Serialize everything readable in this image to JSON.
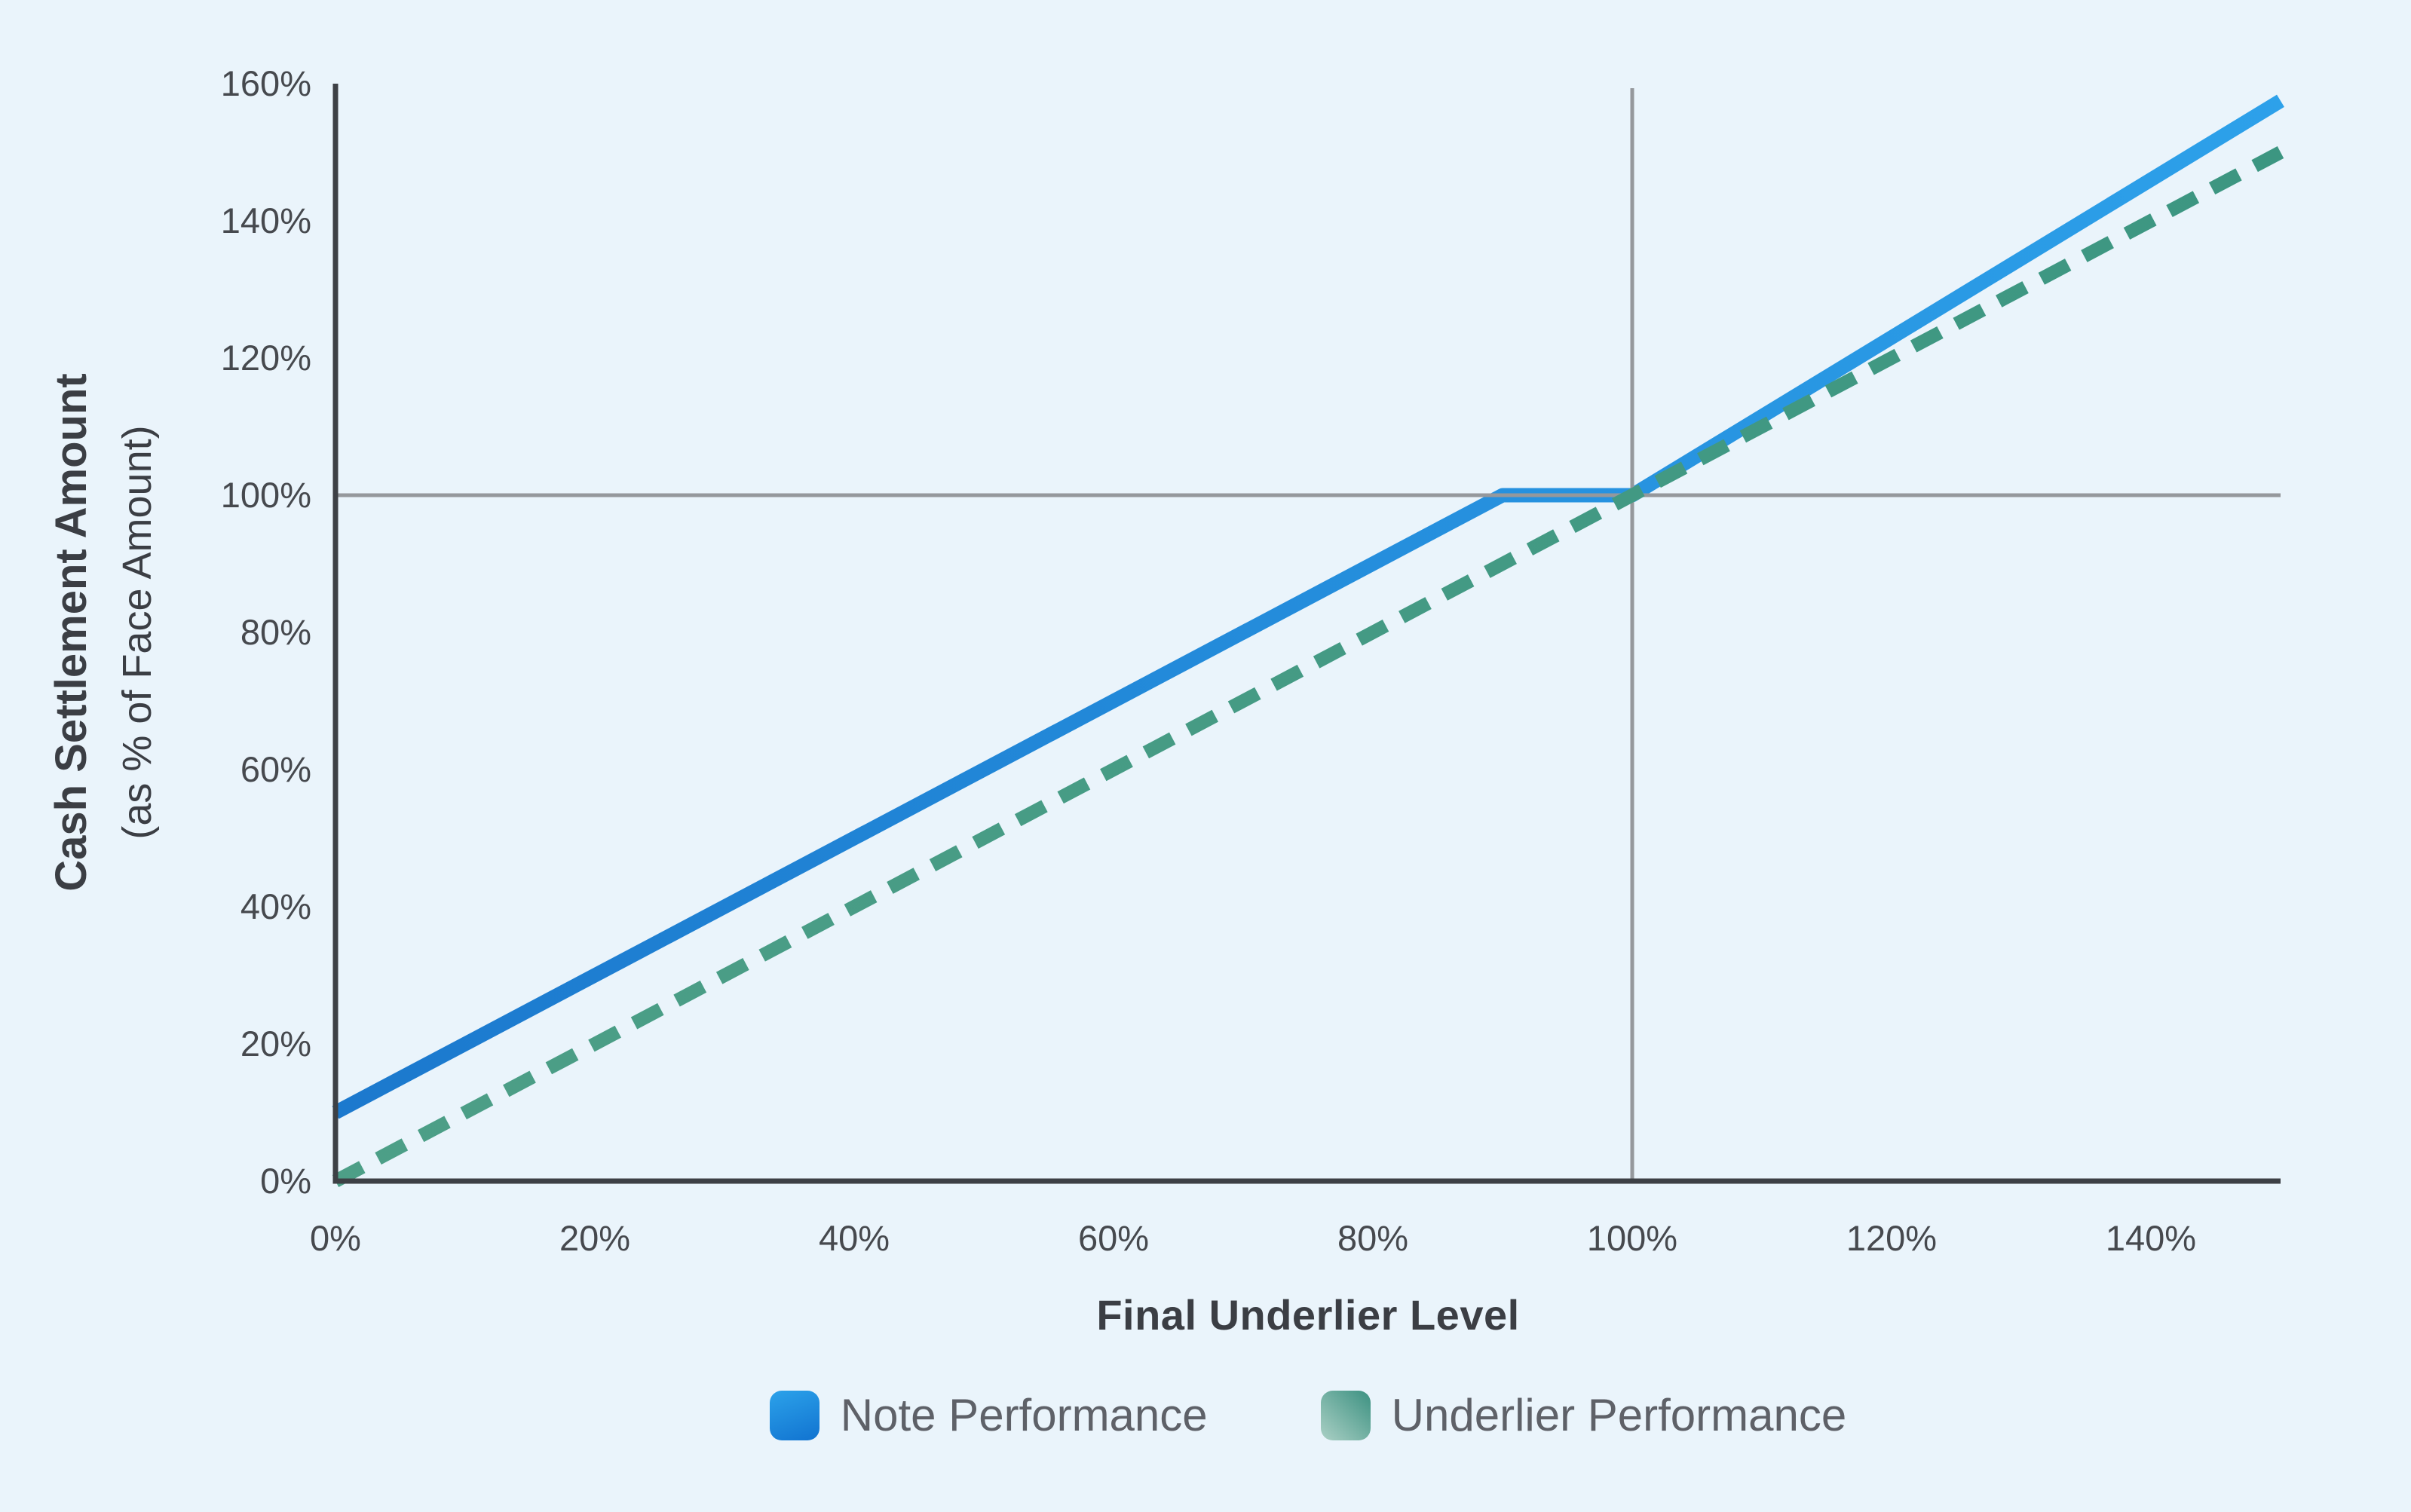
{
  "chart_data": {
    "type": "line",
    "title": "",
    "xlabel": "Final Underlier Level",
    "ylabel": "Cash Settlement Amount",
    "ylabel_sub": "(as % of Face Amount)",
    "xlim": [
      0,
      150
    ],
    "ylim": [
      0,
      160
    ],
    "grid": false,
    "x_ticks": [
      {
        "value": 0,
        "label": "0%"
      },
      {
        "value": 20,
        "label": "20%"
      },
      {
        "value": 40,
        "label": "40%"
      },
      {
        "value": 60,
        "label": "60%"
      },
      {
        "value": 80,
        "label": "80%"
      },
      {
        "value": 100,
        "label": "100%"
      },
      {
        "value": 120,
        "label": "120%"
      },
      {
        "value": 140,
        "label": "140%"
      }
    ],
    "y_ticks": [
      {
        "value": 0,
        "label": "0%"
      },
      {
        "value": 20,
        "label": "20%"
      },
      {
        "value": 40,
        "label": "40%"
      },
      {
        "value": 60,
        "label": "60%"
      },
      {
        "value": 80,
        "label": "80%"
      },
      {
        "value": 100,
        "label": "100%"
      },
      {
        "value": 120,
        "label": "120%"
      },
      {
        "value": 140,
        "label": "140%"
      },
      {
        "value": 160,
        "label": "160%"
      }
    ],
    "reference_lines": [
      {
        "axis": "x",
        "value": 100
      },
      {
        "axis": "y",
        "value": 100
      }
    ],
    "series": [
      {
        "name": "Note Performance",
        "style": "solid",
        "points": [
          [
            0,
            10
          ],
          [
            90,
            100
          ],
          [
            100,
            100
          ],
          [
            150,
            157.5
          ]
        ]
      },
      {
        "name": "Underlier Performance",
        "style": "dashed",
        "points": [
          [
            0,
            0
          ],
          [
            150,
            150
          ]
        ]
      }
    ],
    "legend_position": "bottom"
  },
  "legend": {
    "items": [
      {
        "label": "Note Performance"
      },
      {
        "label": "Underlier Performance"
      }
    ]
  },
  "colors": {
    "background": "#eaf4fb",
    "axis": "#3d4045",
    "tick_label": "#46494e",
    "axis_title": "#3b3e44",
    "legend_text": "#5e6168",
    "reference_line": "#95989c",
    "note_line_start": "#1b78cd",
    "note_line_end": "#2da1ea",
    "underlier_dash_start": "#4d9f87",
    "underlier_dash_end": "#3c9681",
    "legend_blue_from": "#2ca2ea",
    "legend_blue_to": "#1173d0",
    "legend_green_from": "#abd0c5",
    "legend_green_to": "#3c9181"
  }
}
